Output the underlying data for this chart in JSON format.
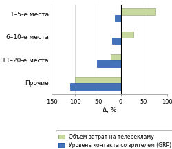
{
  "categories": [
    "1–5-е места",
    "6–10-е места",
    "11–20-е места",
    "Прочие"
  ],
  "green_values": [
    75,
    28,
    -22,
    -100
  ],
  "blue_values": [
    -13,
    -18,
    -52,
    -110
  ],
  "green_color": "#c8d9a0",
  "blue_color": "#4472b8",
  "green_edge": "#99aa77",
  "blue_edge": "#2255aa",
  "xlim": [
    -150,
    100
  ],
  "xticks": [
    -150,
    -100,
    -50,
    0,
    50,
    100
  ],
  "xlabel": "Δ, %",
  "legend_green": "Объем затрат на телерекламу",
  "legend_blue": "Уровень контакта со зрителем (GRP)",
  "bar_height": 0.28,
  "font_size": 6.5,
  "tick_font_size": 6.0
}
